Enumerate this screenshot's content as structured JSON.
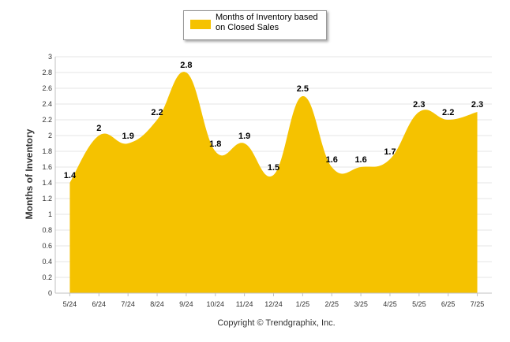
{
  "chart_data": {
    "type": "area",
    "categories": [
      "5/24",
      "6/24",
      "7/24",
      "8/24",
      "9/24",
      "10/24",
      "11/24",
      "12/24",
      "1/25",
      "2/25",
      "3/25",
      "4/25",
      "5/25",
      "6/25",
      "7/25"
    ],
    "series": [
      {
        "name": "Months of Inventory based on Closed Sales",
        "values": [
          1.4,
          2,
          1.9,
          2.2,
          2.8,
          1.8,
          1.9,
          1.5,
          2.5,
          1.6,
          1.6,
          1.7,
          2.3,
          2.2,
          2.3
        ],
        "labels": [
          "1.4",
          "2",
          "1.9",
          "2.2",
          "2.8",
          "1.8",
          "1.9",
          "1.5",
          "2.5",
          "1.6",
          "1.6",
          "1.7",
          "2.3",
          "2.2",
          "2.3"
        ]
      }
    ],
    "ylabel": "Months of Inventory",
    "xlabel": "",
    "ylim": [
      0,
      3
    ],
    "yticks": [
      "0",
      "0.2",
      "0.4",
      "0.6",
      "0.8",
      "1",
      "1.2",
      "1.4",
      "1.6",
      "1.8",
      "2",
      "2.2",
      "2.4",
      "2.6",
      "2.8",
      "3"
    ],
    "grid": true,
    "legend_position": "top-center",
    "colors": {
      "area": "#F5C200",
      "grid": "#E6E6E6",
      "axis": "#C0C0C0"
    }
  },
  "footer": {
    "copyright": "Copyright © Trendgraphix, Inc."
  }
}
